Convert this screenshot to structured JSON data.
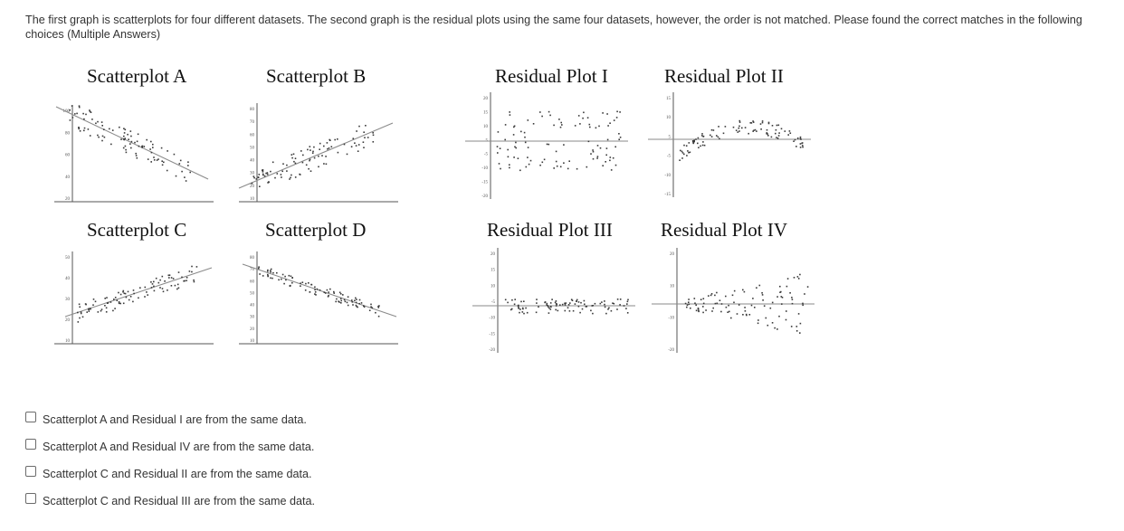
{
  "question": {
    "text": "The first graph is scatterplots for four different datasets. The second graph is the residual plots using the same four datasets, however, the order is not matched. Please found the correct matches in the following choices (Multiple Answers)"
  },
  "plots": {
    "scatter_a": {
      "title": "Scatterplot A",
      "y_ticks": [
        "100",
        "80",
        "60",
        "40",
        "20"
      ]
    },
    "scatter_b": {
      "title": "Scatterplot B",
      "y_ticks": [
        "80",
        "70",
        "60",
        "50",
        "40",
        "30",
        "20",
        "10"
      ]
    },
    "scatter_c": {
      "title": "Scatterplot C",
      "y_ticks": [
        "50",
        "40",
        "30",
        "20",
        "10"
      ]
    },
    "scatter_d": {
      "title": "Scatterplot D",
      "y_ticks": [
        "80",
        "70",
        "60",
        "50",
        "40",
        "30",
        "20",
        "10"
      ]
    },
    "residual_1": {
      "title": "Residual Plot I",
      "y_ticks": [
        "20",
        "15",
        "10",
        "5",
        "-5",
        "-10",
        "-15",
        "-20"
      ]
    },
    "residual_2": {
      "title": "Residual Plot II",
      "y_ticks": [
        "15",
        "10",
        "5",
        "-5",
        "-10",
        "-15"
      ]
    },
    "residual_3": {
      "title": "Residual Plot III",
      "y_ticks": [
        "20",
        "15",
        "10",
        "-5",
        "-10",
        "-15",
        "-20"
      ]
    },
    "residual_4": {
      "title": "Residual Plot IV",
      "y_ticks": [
        "20",
        "10",
        "-10",
        "-20"
      ]
    }
  },
  "options": [
    {
      "label": "Scatterplot A and Residual I are from the same data.",
      "checked": false
    },
    {
      "label": "Scatterplot A and Residual IV are from the same data.",
      "checked": false
    },
    {
      "label": "Scatterplot C and Residual II are from the same data.",
      "checked": false
    },
    {
      "label": "Scatterplot C and Residual III are from the same data.",
      "checked": false
    }
  ],
  "colors": {
    "text": "#333333",
    "axis": "#555555",
    "points": "#3a3a3a",
    "trend_line": "#8a8a8a",
    "checkbox_border": "#6b6b6b"
  }
}
